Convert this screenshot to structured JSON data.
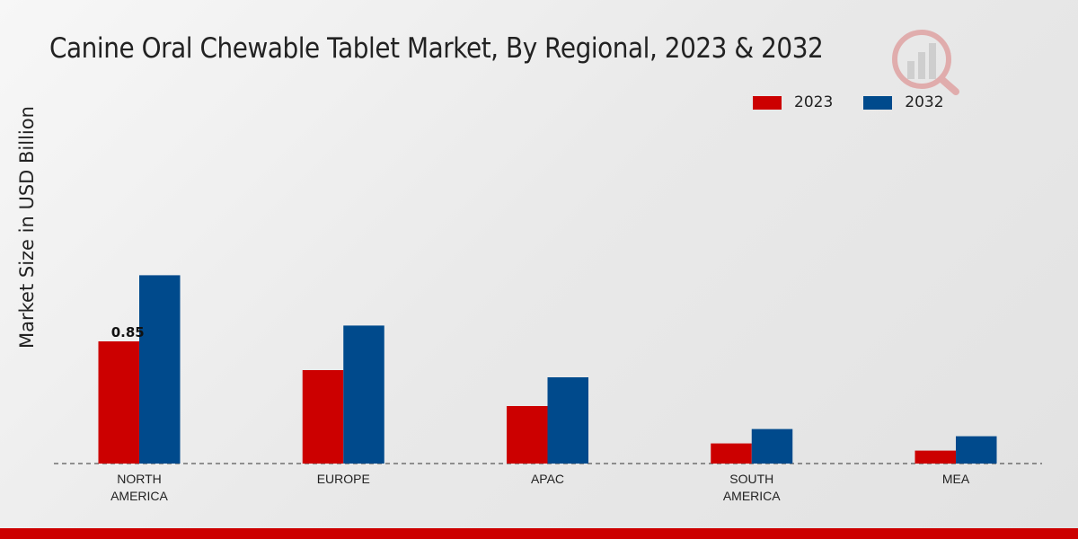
{
  "chart_data": {
    "type": "bar",
    "title": "Canine Oral Chewable Tablet Market, By Regional, 2023 & 2032",
    "ylabel": "Market Size in USD Billion",
    "xlabel": "",
    "categories": [
      "NORTH\nAMERICA",
      "EUROPE",
      "APAC",
      "SOUTH\nAMERICA",
      "MEA"
    ],
    "series": [
      {
        "name": "2023",
        "color": "#cc0000",
        "values": [
          0.85,
          0.65,
          0.4,
          0.14,
          0.09
        ]
      },
      {
        "name": "2032",
        "color": "#004a8c",
        "values": [
          1.31,
          0.96,
          0.6,
          0.24,
          0.19
        ]
      }
    ],
    "data_labels": [
      {
        "series": 0,
        "index": 0,
        "text": "0.85"
      }
    ],
    "ylim": [
      0,
      2.5
    ],
    "grid": false,
    "legend_position": "top-right"
  }
}
